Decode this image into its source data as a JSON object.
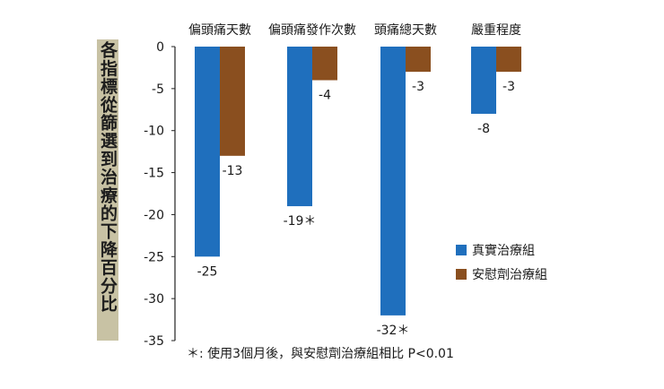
{
  "chart_data": {
    "type": "bar",
    "title": "",
    "ylabel": "各指標從篩選到治療的下降百分比",
    "xlabel": "",
    "categories": [
      "偏頭痛天數",
      "偏頭痛發作次數",
      "頭痛總天數",
      "嚴重程度"
    ],
    "series": [
      {
        "name": "真實治療組",
        "color": "#1f6fbd",
        "values": [
          -25,
          -19,
          -32,
          -8
        ],
        "labels": [
          "-25",
          "-19＊",
          "-32＊",
          "-8"
        ]
      },
      {
        "name": "安慰劑治療組",
        "color": "#8a4f1f",
        "values": [
          -13,
          -4,
          -3,
          -3
        ],
        "labels": [
          "-13",
          "-4",
          "-3",
          "-3"
        ]
      }
    ],
    "ylim": [
      -35,
      0
    ],
    "yticks": [
      0,
      -5,
      -10,
      -15,
      -20,
      -25,
      -30,
      -35
    ],
    "footnote": "＊: 使用3個月後，與安慰劑治療組相比  P<0.01",
    "legend_position": "right"
  }
}
